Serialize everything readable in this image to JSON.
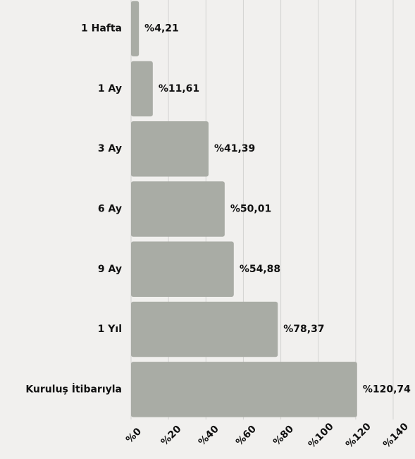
{
  "chart_data": {
    "type": "hbar",
    "categories": [
      "1 Hafta",
      "1 Ay",
      "3 Ay",
      "6 Ay",
      "9 Ay",
      "1 Yıl",
      "Kuruluş İtibarıyla"
    ],
    "values": [
      4.21,
      11.61,
      41.39,
      50.01,
      54.88,
      78.37,
      120.74
    ],
    "value_labels": [
      "%4,21",
      "%11,61",
      "%41,39",
      "%50,01",
      "%54,88",
      "%78,37",
      "%120,74"
    ],
    "color": "#a9aca5",
    "xlim": [
      0,
      140
    ],
    "xticks": [
      {
        "value": 0,
        "label": "%0"
      },
      {
        "value": 20,
        "label": "%20"
      },
      {
        "value": 40,
        "label": "%40"
      },
      {
        "value": 60,
        "label": "%60"
      },
      {
        "value": 80,
        "label": "%80"
      },
      {
        "value": 100,
        "label": "%100"
      },
      {
        "value": 120,
        "label": "%120"
      },
      {
        "value": 140,
        "label": "%140"
      }
    ],
    "grid": true
  }
}
